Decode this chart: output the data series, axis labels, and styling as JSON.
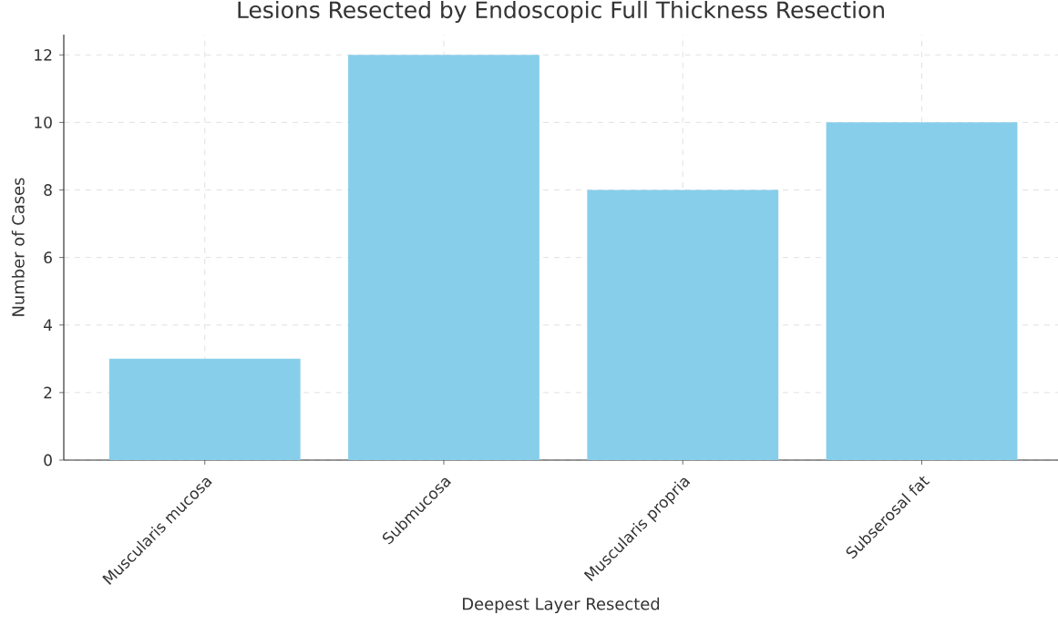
{
  "chart_data": {
    "type": "bar",
    "title": "Lesions Resected by Endoscopic Full Thickness Resection",
    "xlabel": "Deepest Layer Resected",
    "ylabel": "Number of Cases",
    "categories": [
      "Muscularis mucosa",
      "Submucosa",
      "Muscularis propria",
      "Subserosal fat"
    ],
    "values": [
      3,
      12,
      8,
      10
    ],
    "color": "#87ceeb",
    "ylim": [
      0,
      12.6
    ],
    "yticks": [
      0,
      2,
      4,
      6,
      8,
      10,
      12
    ],
    "grid": true
  }
}
